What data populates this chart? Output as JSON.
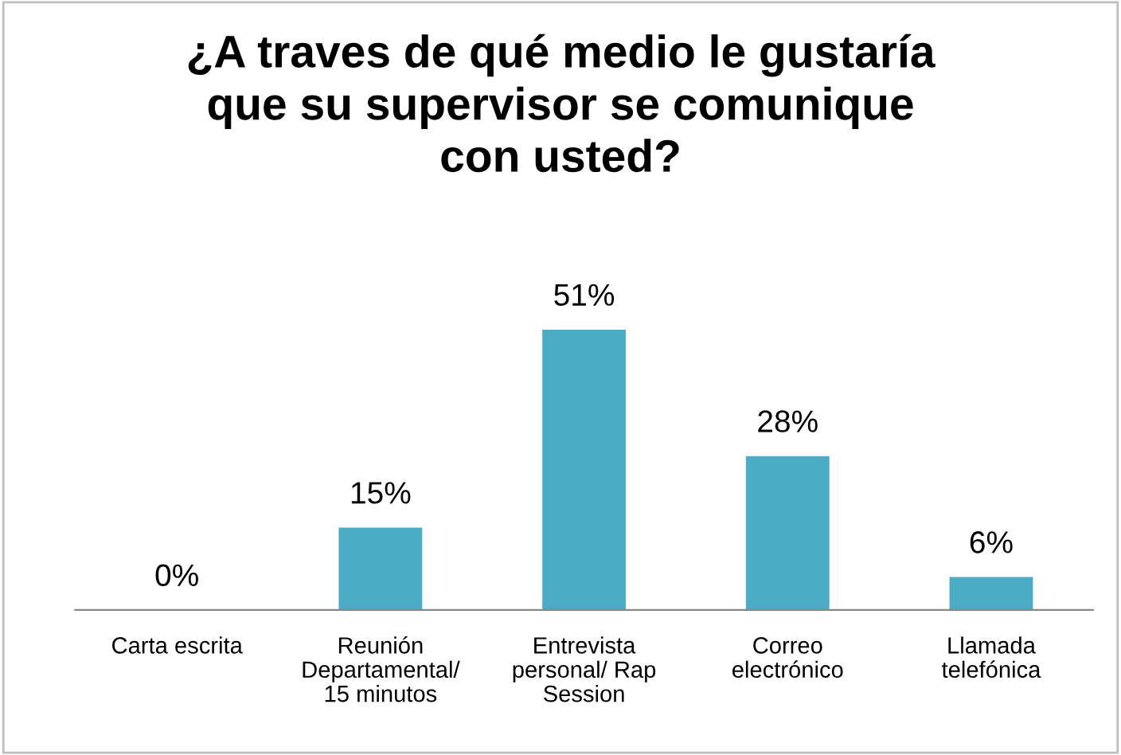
{
  "chart_data": {
    "type": "bar",
    "title": "¿A traves de qué medio le gustaría\nque su supervisor se comunique\ncon usted?",
    "categories": [
      "Carta escrita",
      "Reunión\nDepartamental/\n15 minutos",
      "Entrevista\npersonal/ Rap\nSession",
      "Correo\nelectrónico",
      "Llamada\ntelefónica"
    ],
    "values": [
      0,
      15,
      51,
      28,
      6
    ],
    "value_labels": [
      "0%",
      "15%",
      "51%",
      "28%",
      "6%"
    ],
    "color": "#4bacc6"
  }
}
